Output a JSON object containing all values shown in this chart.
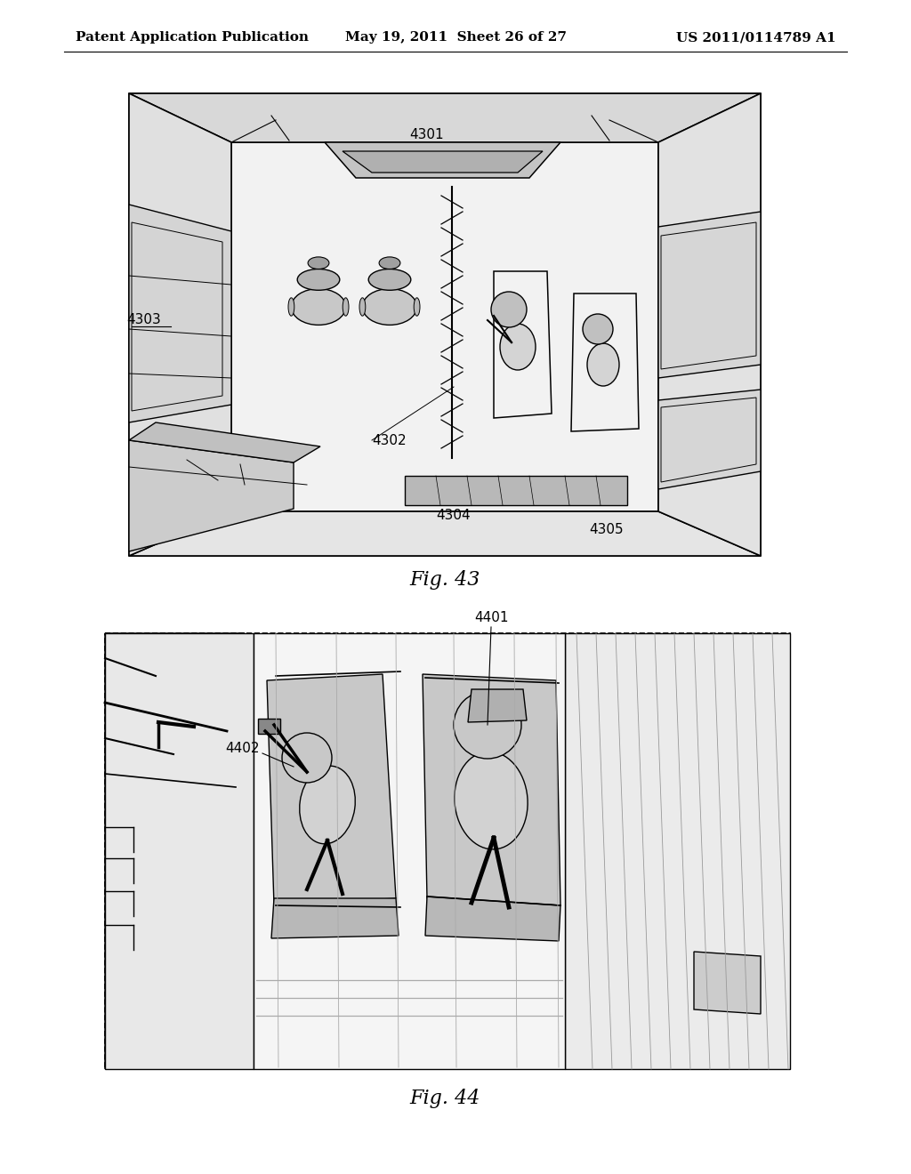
{
  "background_color": "#ffffff",
  "header_left": "Patent Application Publication",
  "header_center": "May 19, 2011  Sheet 26 of 27",
  "header_right": "US 2011/0114789 A1",
  "fig43_label": "Fig. 43",
  "fig44_label": "Fig. 44",
  "header_fontsize": 11,
  "label_fontsize": 11,
  "fig_label_fontsize": 16
}
